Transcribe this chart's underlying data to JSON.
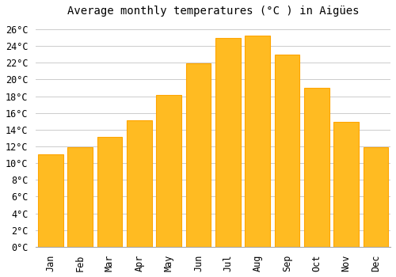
{
  "title": "Average monthly temperatures (°C ) in Aigües",
  "months": [
    "Jan",
    "Feb",
    "Mar",
    "Apr",
    "May",
    "Jun",
    "Jul",
    "Aug",
    "Sep",
    "Oct",
    "Nov",
    "Dec"
  ],
  "values": [
    11.1,
    11.9,
    13.1,
    15.1,
    18.1,
    21.9,
    24.9,
    25.2,
    23.0,
    19.0,
    14.9,
    11.9
  ],
  "bar_color": "#FFBB22",
  "bar_edge_color": "#FFA500",
  "background_color": "#ffffff",
  "grid_color": "#cccccc",
  "ylim": [
    0,
    27
  ],
  "yticks": [
    0,
    2,
    4,
    6,
    8,
    10,
    12,
    14,
    16,
    18,
    20,
    22,
    24,
    26
  ],
  "title_fontsize": 10,
  "tick_fontsize": 8.5,
  "font_family": "monospace"
}
